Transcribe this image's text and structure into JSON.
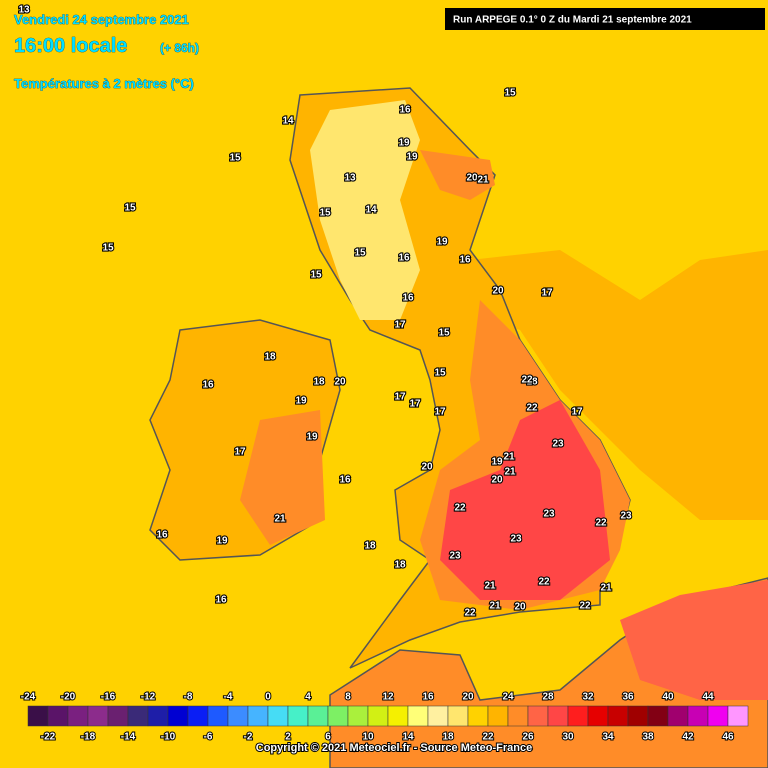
{
  "header": {
    "date": "Vendredi 24 septembre 2021",
    "time": "16:00 locale",
    "lead": "(+ 86h)",
    "field": "Températures à 2 mètres (°C)",
    "run": "Run ARPEGE 0.1° 0 Z du Mardi 21 septembre 2021"
  },
  "footer": "Copyright © 2021 Meteociel.fr - Source Meteo-France",
  "legend": {
    "ticks_top": [
      -24,
      -20,
      -16,
      -12,
      -8,
      -4,
      0,
      4,
      8,
      12,
      16,
      20,
      24,
      28,
      32,
      36,
      40,
      44
    ],
    "ticks_bottom": [
      -22,
      -18,
      -14,
      -10,
      -6,
      -2,
      2,
      6,
      10,
      14,
      18,
      22,
      26,
      30,
      34,
      38,
      42,
      46
    ],
    "colors": [
      "#3a0f48",
      "#5a1468",
      "#7a2080",
      "#8c2c8c",
      "#6a2070",
      "#3a2a78",
      "#1e1ea8",
      "#0000d2",
      "#0a1ef5",
      "#1e5aff",
      "#3c8cff",
      "#46b4ff",
      "#46dcf5",
      "#46f0c8",
      "#5af096",
      "#7df064",
      "#aaf03c",
      "#d2f014",
      "#f5f000",
      "#ffff78",
      "#fff0a0",
      "#ffe66e",
      "#ffd200",
      "#ffb400",
      "#ff8c28",
      "#ff6446",
      "#ff4646",
      "#ff1e1e",
      "#e60000",
      "#c80000",
      "#a00000",
      "#820014",
      "#a0006e",
      "#c800b4",
      "#f000f0",
      "#ff96ff"
    ]
  },
  "map_labels": [
    "13",
    "15",
    "15",
    "16",
    "15",
    "14",
    "15",
    "13",
    "19",
    "19",
    "20",
    "21",
    "15",
    "15",
    "14",
    "19",
    "16",
    "17",
    "20",
    "15",
    "17",
    "15",
    "16",
    "17",
    "18",
    "19",
    "20",
    "21",
    "22",
    "22",
    "21",
    "23",
    "23",
    "22",
    "23",
    "23",
    "21",
    "22",
    "22",
    "20",
    "22",
    "15",
    "16",
    "16",
    "18",
    "19",
    "18",
    "17",
    "16",
    "17",
    "16",
    "16",
    "18",
    "21",
    "21",
    "17",
    "20",
    "23",
    "22",
    "21",
    "19",
    "18",
    "20",
    "19",
    "17"
  ]
}
